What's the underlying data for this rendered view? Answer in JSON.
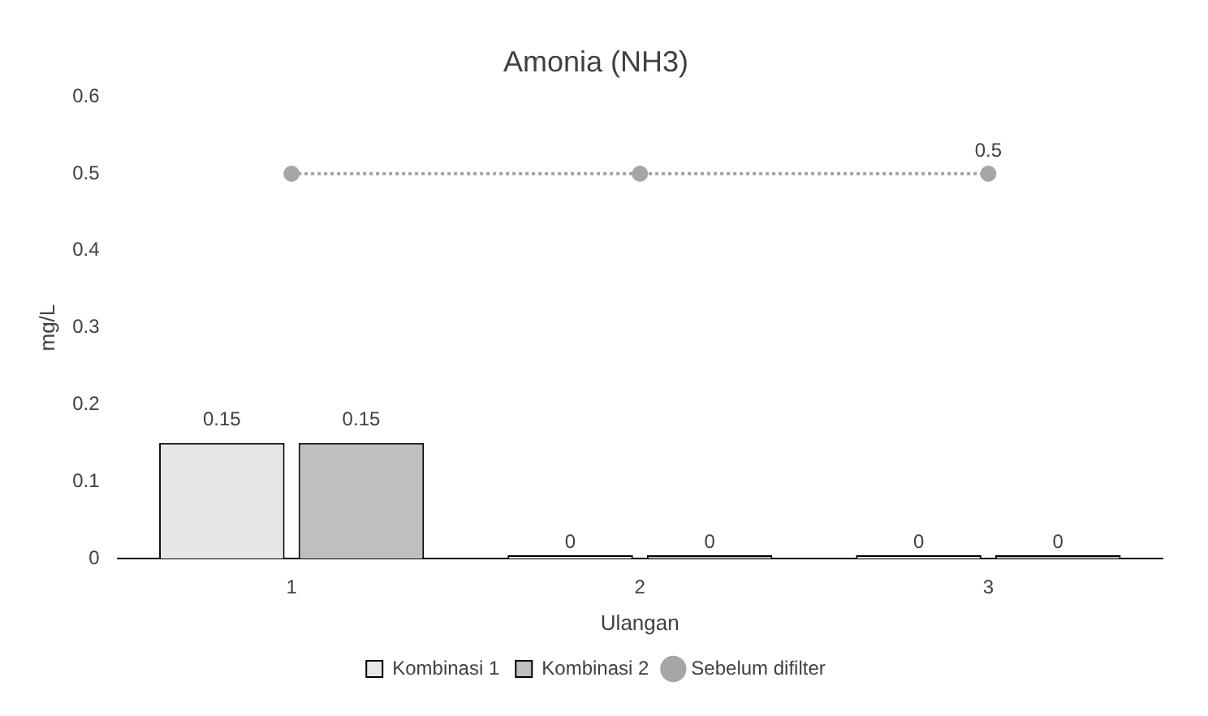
{
  "chart_data": {
    "type": "bar",
    "title": "Amonia (NH3)",
    "xlabel": "Ulangan",
    "ylabel": "mg/L",
    "categories": [
      "1",
      "2",
      "3"
    ],
    "series": [
      {
        "name": "Kombinasi 1",
        "color": "#e6e6e6",
        "values": [
          0.15,
          0,
          0
        ],
        "value_labels": [
          "0.15",
          "0",
          "0"
        ]
      },
      {
        "name": "Kombinasi 2",
        "color": "#bfbfbf",
        "values": [
          0.15,
          0,
          0
        ],
        "value_labels": [
          "0.15",
          "0",
          "0"
        ]
      },
      {
        "name": "Sebelum difilter",
        "type": "line",
        "color": "#a6a6a6",
        "values": [
          0.5,
          0.5,
          0.5
        ],
        "value_labels": [
          null,
          null,
          "0.5"
        ],
        "marker": "circle",
        "line_style": "dotted"
      }
    ],
    "ylim": [
      0,
      0.6
    ],
    "yticks": [
      0,
      0.1,
      0.2,
      0.3,
      0.4,
      0.5,
      0.6
    ],
    "grid": false,
    "legend": "bottom"
  }
}
